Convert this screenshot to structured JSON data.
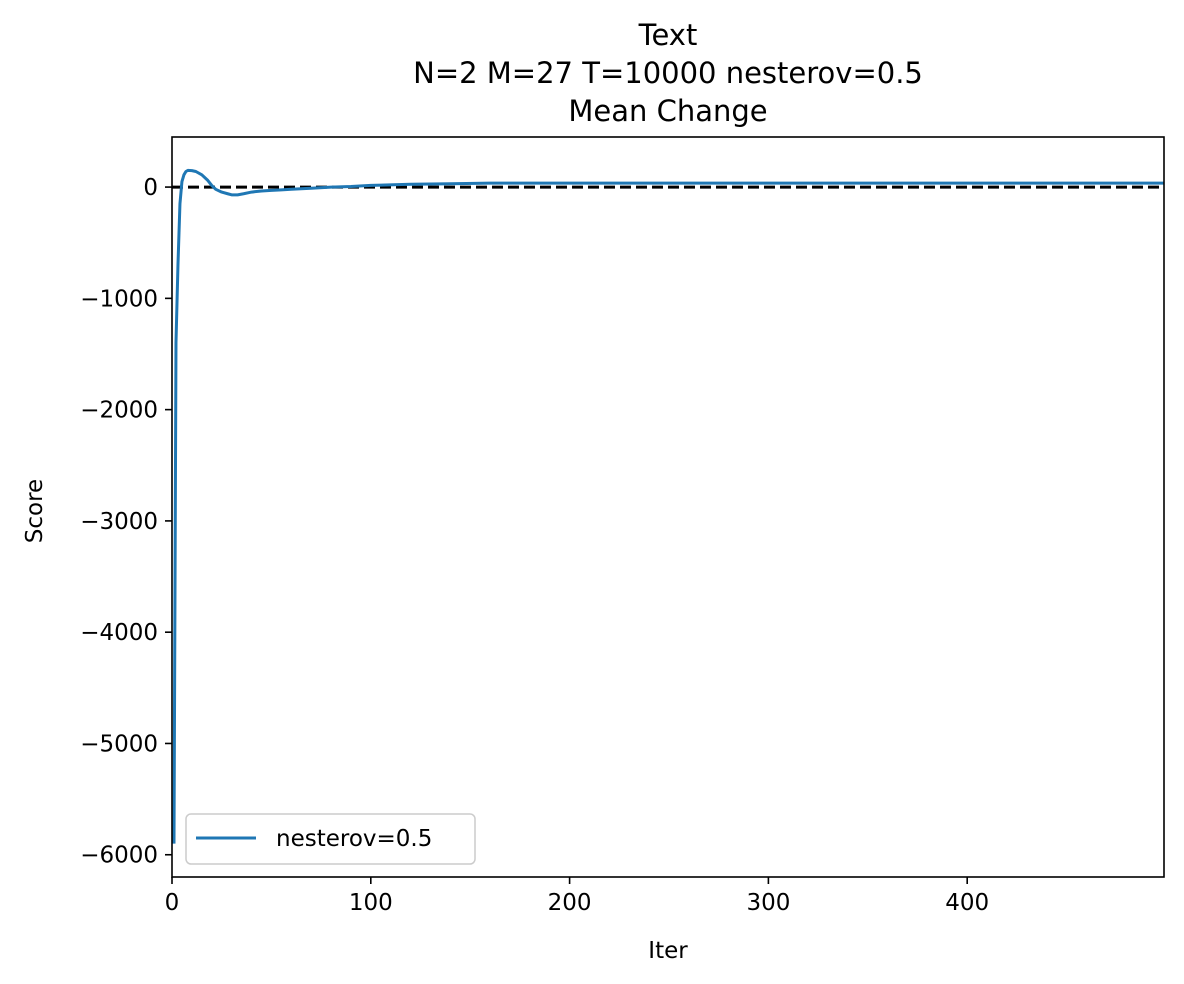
{
  "chart_data": {
    "type": "line",
    "title_lines": [
      "Text",
      "N=2 M=27 T=10000 nesterov=0.5",
      "Mean Change"
    ],
    "xlabel": "Iter",
    "ylabel": "Score",
    "xlim": [
      0,
      499
    ],
    "ylim": [
      -6200,
      450
    ],
    "x_ticks": [
      0,
      100,
      200,
      300,
      400
    ],
    "y_ticks": [
      0,
      -1000,
      -2000,
      -3000,
      -4000,
      -5000,
      -6000
    ],
    "x_tick_labels": [
      "0",
      "100",
      "200",
      "300",
      "400"
    ],
    "y_tick_labels": [
      "0",
      "−1000",
      "−2000",
      "−3000",
      "−4000",
      "−5000",
      "−6000"
    ],
    "reference_line": {
      "y": 0,
      "style": "dashed",
      "color": "#000000"
    },
    "legend_position": "lower-left",
    "series": [
      {
        "name": "nesterov=0.5",
        "color": "#1f77b4",
        "x": [
          1,
          2,
          3,
          4,
          5,
          6,
          7,
          8,
          10,
          12,
          15,
          18,
          20,
          22,
          25,
          28,
          30,
          33,
          36,
          40,
          45,
          50,
          55,
          60,
          70,
          80,
          90,
          100,
          120,
          140,
          160,
          200,
          250,
          300,
          350,
          400,
          450,
          499
        ],
        "y": [
          -5900,
          -1400,
          -700,
          -150,
          50,
          110,
          140,
          150,
          148,
          140,
          110,
          60,
          15,
          -20,
          -45,
          -60,
          -70,
          -70,
          -60,
          -45,
          -35,
          -30,
          -25,
          -20,
          -10,
          0,
          5,
          15,
          25,
          30,
          35,
          35,
          35,
          35,
          35,
          35,
          35,
          35
        ]
      }
    ]
  }
}
